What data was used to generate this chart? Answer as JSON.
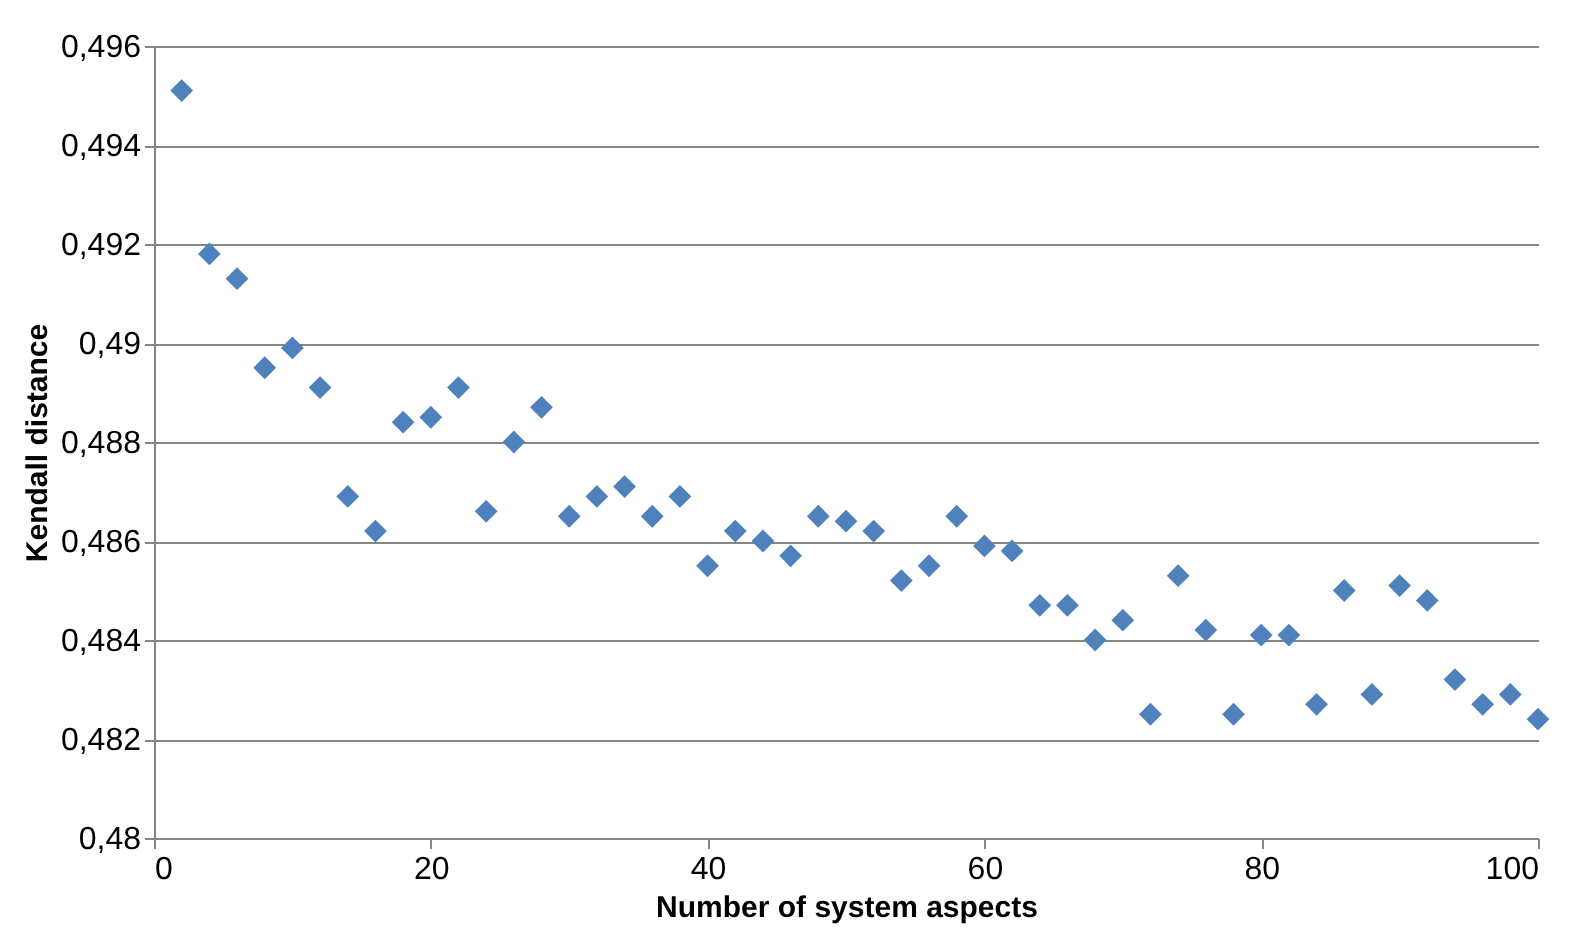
{
  "chart_data": {
    "type": "scatter",
    "xlabel": "Number of system aspects",
    "ylabel": "Kendall distance",
    "x": [
      2,
      4,
      6,
      8,
      10,
      12,
      14,
      16,
      18,
      20,
      22,
      24,
      26,
      28,
      30,
      32,
      34,
      36,
      38,
      40,
      42,
      44,
      46,
      48,
      50,
      52,
      54,
      56,
      58,
      60,
      62,
      64,
      66,
      68,
      70,
      72,
      74,
      76,
      78,
      80,
      82,
      84,
      86,
      88,
      90,
      92,
      94,
      96,
      98,
      100
    ],
    "series": [
      {
        "color": "#4f81bd",
        "values": [
          0.4951,
          0.4918,
          0.4913,
          0.4895,
          0.4899,
          0.4891,
          0.4869,
          0.4862,
          0.4884,
          0.4885,
          0.4891,
          0.4866,
          0.488,
          0.4887,
          0.4865,
          0.4869,
          0.4871,
          0.4865,
          0.4869,
          0.4855,
          0.4862,
          0.486,
          0.4857,
          0.4865,
          0.4864,
          0.4862,
          0.4852,
          0.4855,
          0.4865,
          0.4859,
          0.4858,
          0.4847,
          0.4847,
          0.484,
          0.4844,
          0.4825,
          0.4853,
          0.4842,
          0.4825,
          0.4841,
          0.4841,
          0.4827,
          0.485,
          0.4829,
          0.4851,
          0.4848,
          0.4832,
          0.4827,
          0.4829,
          0.4824
        ]
      }
    ],
    "xlim": [
      0,
      100
    ],
    "xticks": [
      0,
      20,
      40,
      60,
      80,
      100
    ],
    "ylim": [
      0.48,
      0.496
    ],
    "yticks": [
      {
        "value": 0.48,
        "label": "0,48"
      },
      {
        "value": 0.482,
        "label": "0,482"
      },
      {
        "value": 0.484,
        "label": "0,484"
      },
      {
        "value": 0.486,
        "label": "0,486"
      },
      {
        "value": 0.488,
        "label": "0,488"
      },
      {
        "value": 0.49,
        "label": "0,49"
      },
      {
        "value": 0.492,
        "label": "0,492"
      },
      {
        "value": 0.494,
        "label": "0,494"
      },
      {
        "value": 0.496,
        "label": "0,496"
      }
    ],
    "grid": "y",
    "marker": "diamond",
    "legend": false
  }
}
